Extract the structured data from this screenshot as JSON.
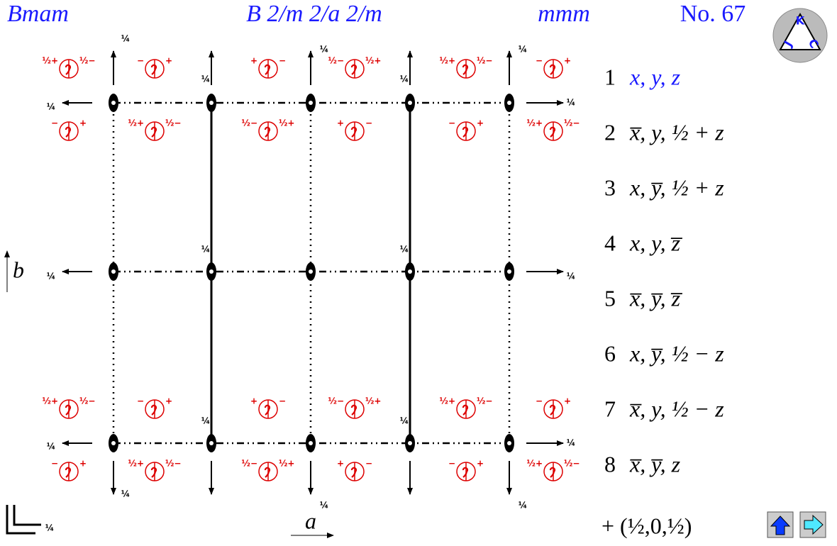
{
  "header": {
    "short_symbol": "Bmam",
    "full_symbol": "B 2/m 2/a 2/m",
    "point_group": "mmm",
    "number": "No. 67"
  },
  "logo": [
    "J",
    "K",
    "C"
  ],
  "axes": {
    "a": "a",
    "b": "b"
  },
  "height_labels": [
    "¼",
    "¼",
    "¼",
    "¼",
    "¼",
    "¼",
    "¼",
    "¼",
    "¼",
    "¼",
    "¼",
    "¼",
    "¼",
    "¼",
    "¼",
    "¼",
    "¼",
    "¼",
    "¼"
  ],
  "sites": [
    [
      [
        "½+",
        "½−"
      ],
      [
        "−",
        "+"
      ],
      [
        "+",
        "−"
      ],
      [
        "½−",
        "½+"
      ],
      [
        "½+",
        "½−"
      ],
      [
        "−",
        "+"
      ]
    ],
    [
      [
        "−",
        "+"
      ],
      [
        "½+",
        "½−"
      ],
      [
        "½−",
        "½+"
      ],
      [
        "+",
        "−"
      ],
      [
        "−",
        "+"
      ],
      [
        "½+",
        "½−"
      ]
    ],
    [
      [
        "½+",
        "½−"
      ],
      [
        "−",
        "+"
      ],
      [
        "+",
        "−"
      ],
      [
        "½−",
        "½+"
      ],
      [
        "½+",
        "½−"
      ],
      [
        "−",
        "+"
      ]
    ],
    [
      [
        "−",
        "+"
      ],
      [
        "½+",
        "½−"
      ],
      [
        "½−",
        "½+"
      ],
      [
        "+",
        "−"
      ],
      [
        "−",
        "+"
      ],
      [
        "½+",
        "½−"
      ]
    ]
  ],
  "positions": [
    {
      "number": "1",
      "coords": "x, y, z",
      "color": "#1a1aff"
    },
    {
      "number": "2",
      "coords": "x̅, y, ½ + z"
    },
    {
      "number": "3",
      "coords": "x, y̅, ½ + z"
    },
    {
      "number": "4",
      "coords": "x, y, z̅"
    },
    {
      "number": "5",
      "coords": "x̅, y̅, z̅"
    },
    {
      "number": "6",
      "coords": "x, y̅, ½ − z"
    },
    {
      "number": "7",
      "coords": "x̅, y, ½ − z"
    },
    {
      "number": "8",
      "coords": "x̅, y̅, z"
    }
  ],
  "centering": "+ (½,0,½)"
}
